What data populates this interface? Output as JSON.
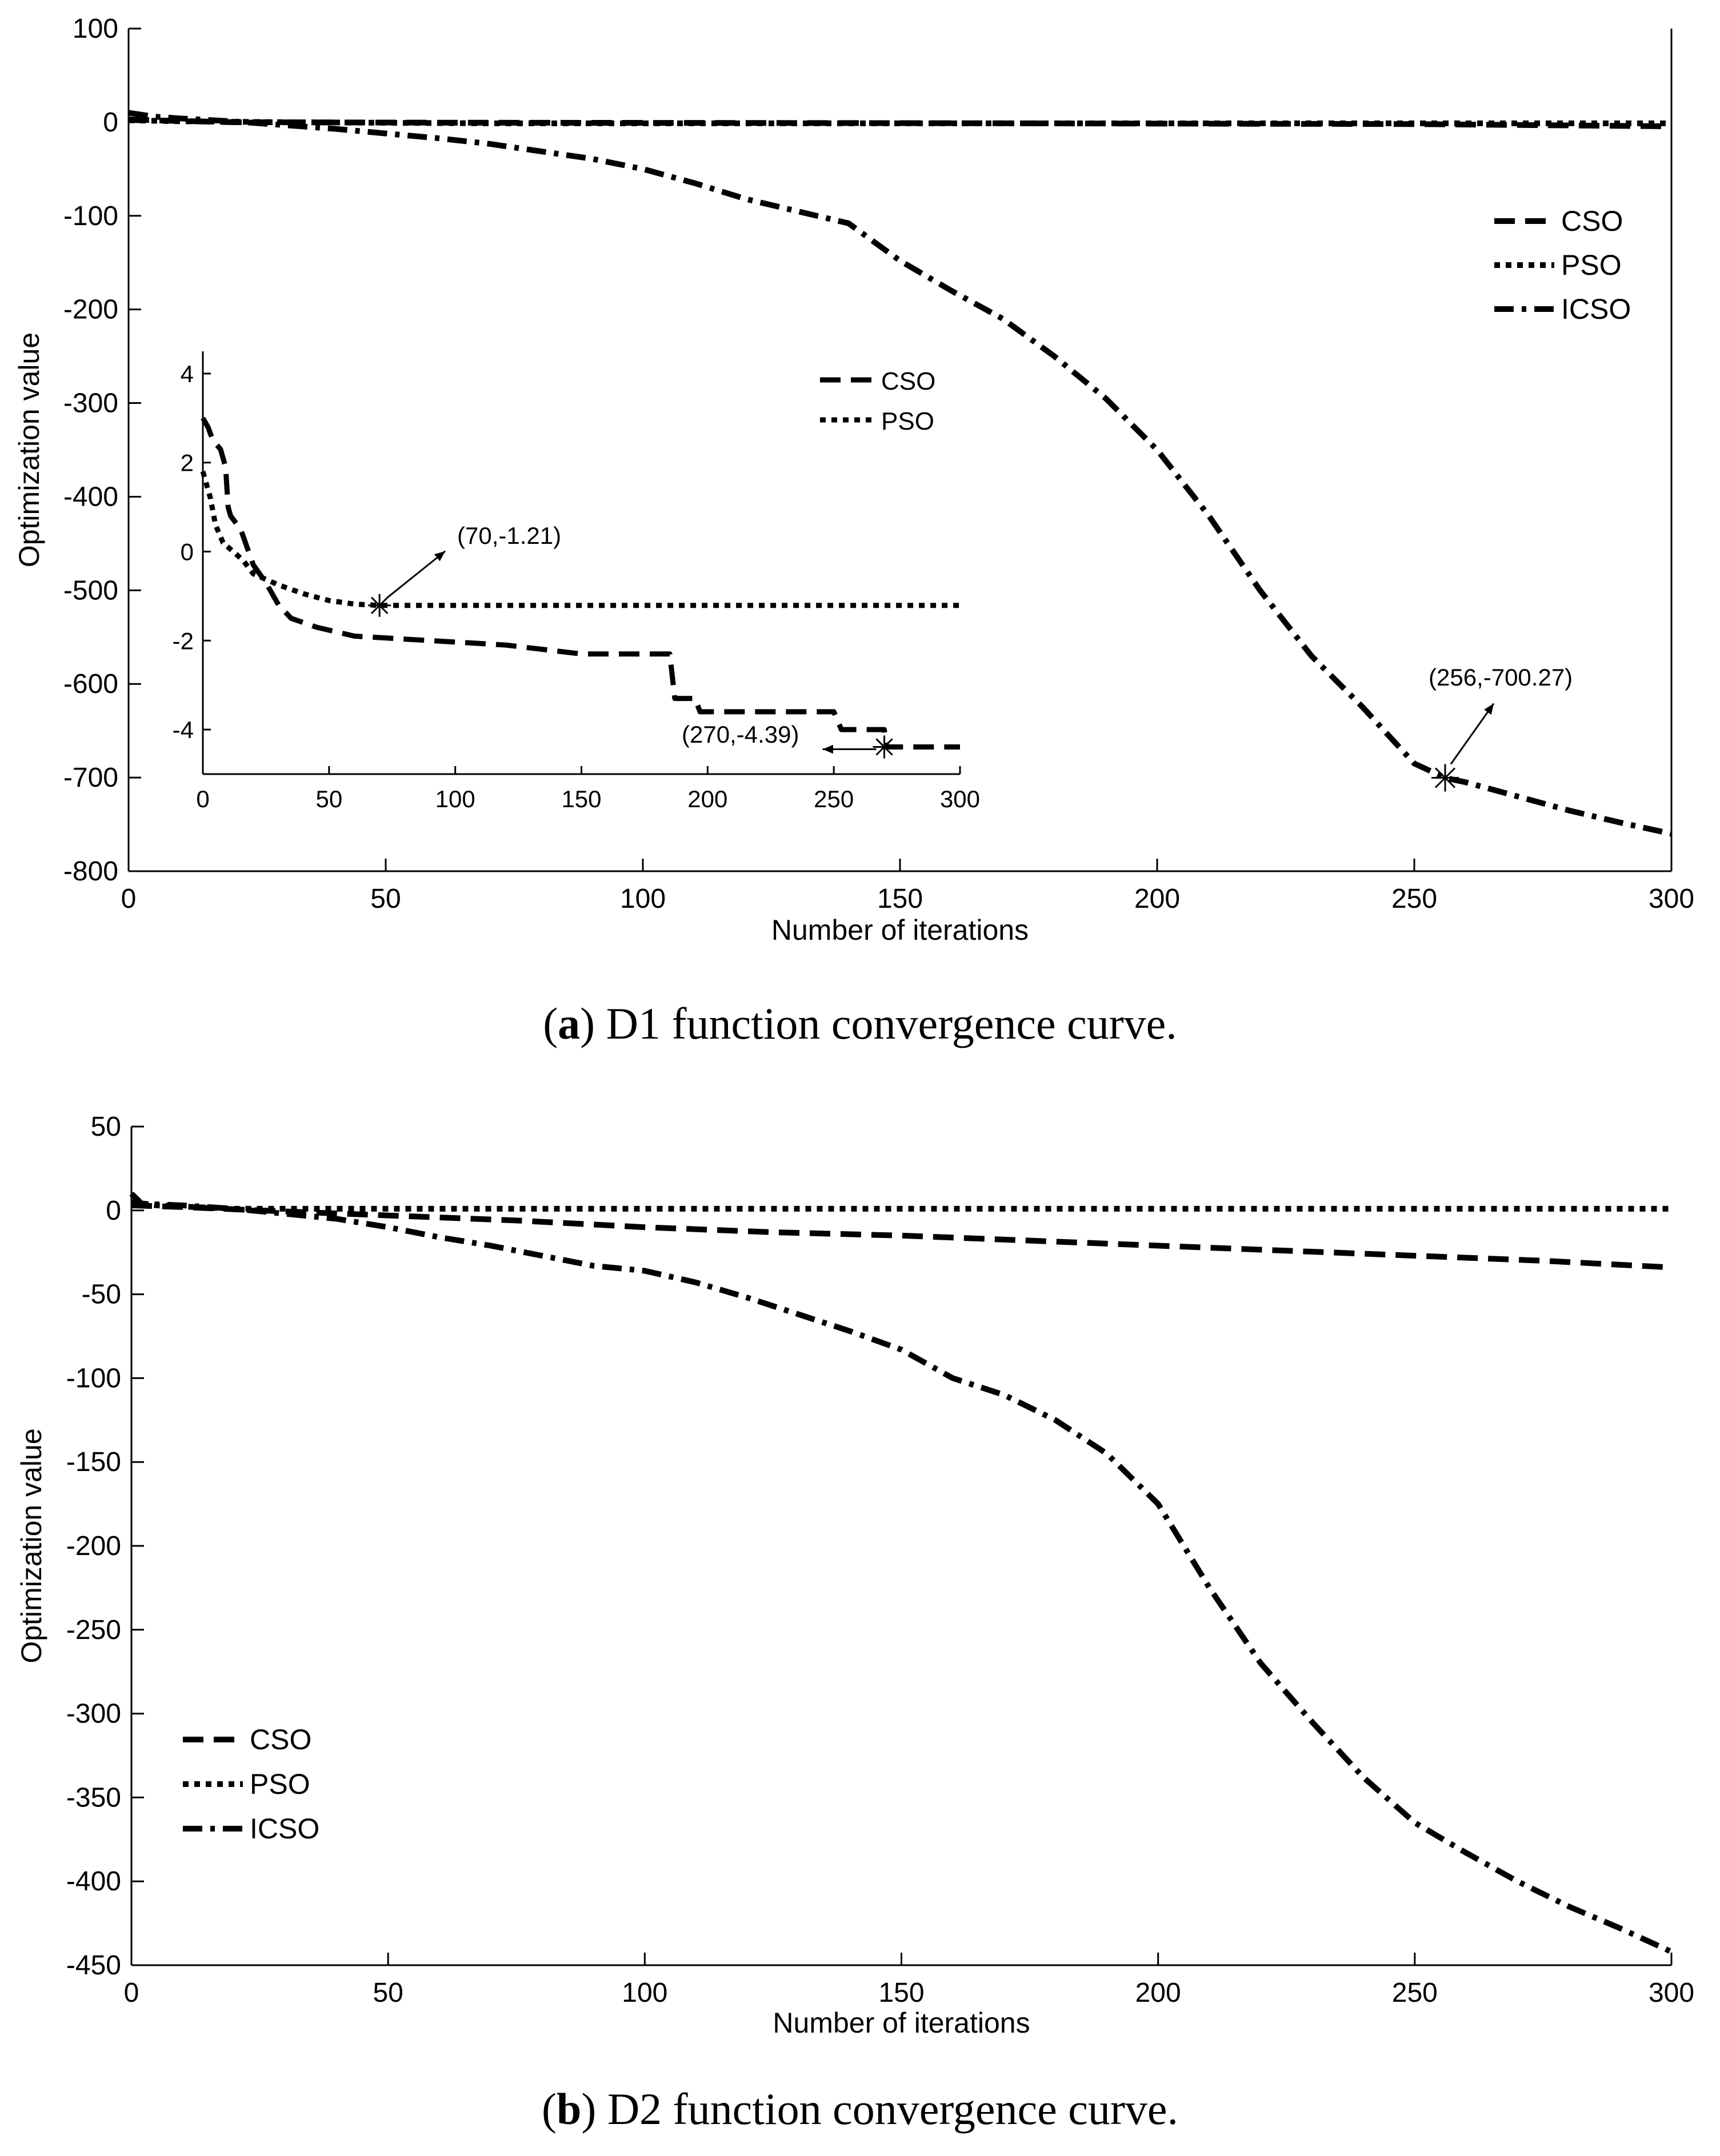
{
  "figure": {
    "caption_a": {
      "prefix": "(",
      "letter": "a",
      "text": ") D1 function convergence curve."
    },
    "caption_b": {
      "prefix": "(",
      "letter": "b",
      "text": ") D2 function convergence curve."
    }
  },
  "chart_data": [
    {
      "id": "D1",
      "type": "line",
      "title": "",
      "xlabel": "Number of iterations",
      "ylabel": "Optimization value",
      "xlim": [
        0,
        300
      ],
      "ylim": [
        -800,
        100
      ],
      "xticks": [
        0,
        50,
        100,
        150,
        200,
        250,
        300
      ],
      "yticks": [
        100,
        0,
        -100,
        -200,
        -300,
        -400,
        -500,
        -600,
        -700,
        -800
      ],
      "grid": false,
      "legend_position": "upper-right",
      "series": [
        {
          "name": "CSO",
          "style": "dashed",
          "x": [
            0,
            5,
            20,
            60,
            150,
            250,
            300
          ],
          "y": [
            3,
            2,
            0,
            -0.5,
            -1,
            -2,
            -4.4
          ]
        },
        {
          "name": "PSO",
          "style": "dotted",
          "x": [
            0,
            10,
            30,
            70,
            300
          ],
          "y": [
            2,
            1,
            0,
            -1.2,
            -1.2
          ]
        },
        {
          "name": "ICSO",
          "style": "dashdot",
          "x": [
            0,
            5,
            10,
            20,
            30,
            40,
            50,
            60,
            70,
            80,
            90,
            100,
            110,
            120,
            130,
            140,
            150,
            160,
            170,
            180,
            190,
            200,
            210,
            220,
            230,
            240,
            250,
            256,
            260,
            270,
            280,
            290,
            300
          ],
          "y": [
            10,
            6,
            4,
            1,
            -3,
            -7,
            -12,
            -17,
            -23,
            -31,
            -39,
            -50,
            -65,
            -82,
            -95,
            -108,
            -148,
            -180,
            -210,
            -250,
            -295,
            -350,
            -420,
            -500,
            -570,
            -625,
            -685,
            -700.27,
            -705,
            -720,
            -735,
            -748,
            -760
          ]
        }
      ],
      "annotations": [
        {
          "text": "(256,-700.27)",
          "x": 256,
          "y": -700.27
        }
      ],
      "inset": {
        "xlim": [
          0,
          300
        ],
        "ylim": [
          -5,
          4.5
        ],
        "xticks": [
          0,
          50,
          100,
          150,
          200,
          250,
          300
        ],
        "yticks": [
          4,
          2,
          0,
          -2,
          -4
        ],
        "legend_position": "upper-right",
        "series": [
          {
            "name": "CSO",
            "style": "dashed",
            "x": [
              0,
              2,
              4,
              7,
              9,
              10,
              11,
              15,
              20,
              25,
              30,
              35,
              45,
              60,
              120,
              150,
              185,
              187,
              195,
              197,
              200,
              250,
              253,
              270,
              271,
              300
            ],
            "y": [
              3.0,
              2.8,
              2.5,
              2.3,
              1.9,
              1.0,
              0.8,
              0.5,
              -0.3,
              -0.7,
              -1.2,
              -1.5,
              -1.7,
              -1.9,
              -2.1,
              -2.3,
              -2.3,
              -3.3,
              -3.3,
              -3.6,
              -3.6,
              -3.6,
              -4.0,
              -4.0,
              -4.39,
              -4.39
            ]
          },
          {
            "name": "PSO",
            "style": "dotted",
            "x": [
              0,
              3,
              5,
              8,
              12,
              16,
              20,
              30,
              40,
              50,
              60,
              70,
              300
            ],
            "y": [
              1.8,
              1.2,
              0.6,
              0.2,
              0.0,
              -0.2,
              -0.5,
              -0.75,
              -0.95,
              -1.1,
              -1.18,
              -1.21,
              -1.21
            ]
          }
        ],
        "annotations": [
          {
            "text": "(70,-1.21)",
            "x": 70,
            "y": -1.21
          },
          {
            "text": "(270,-4.39)",
            "x": 270,
            "y": -4.39
          }
        ]
      }
    },
    {
      "id": "D2",
      "type": "line",
      "title": "",
      "xlabel": "Number of iterations",
      "ylabel": "Optimization value",
      "xlim": [
        0,
        300
      ],
      "ylim": [
        -450,
        50
      ],
      "xticks": [
        0,
        50,
        100,
        150,
        200,
        250,
        300
      ],
      "yticks": [
        50,
        0,
        -50,
        -100,
        -150,
        -200,
        -250,
        -300,
        -350,
        -400,
        -450
      ],
      "grid": false,
      "legend_position": "lower-left",
      "series": [
        {
          "name": "CSO",
          "style": "dashed",
          "x": [
            0,
            10,
            25,
            50,
            75,
            100,
            125,
            150,
            175,
            200,
            225,
            250,
            275,
            300
          ],
          "y": [
            3,
            2,
            0,
            -3,
            -6,
            -10,
            -13,
            -15,
            -18,
            -21,
            -24,
            -27,
            -30,
            -34
          ]
        },
        {
          "name": "PSO",
          "style": "dotted",
          "x": [
            0,
            5,
            20,
            300
          ],
          "y": [
            5,
            3,
            1,
            1
          ]
        },
        {
          "name": "ICSO",
          "style": "dashdot",
          "x": [
            0,
            2,
            10,
            20,
            30,
            40,
            50,
            60,
            70,
            80,
            90,
            100,
            110,
            120,
            130,
            140,
            150,
            160,
            170,
            180,
            190,
            200,
            210,
            220,
            230,
            240,
            250,
            260,
            270,
            280,
            290,
            300
          ],
          "y": [
            10,
            4,
            3,
            1,
            -2,
            -5,
            -10,
            -16,
            -21,
            -27,
            -33,
            -36,
            -43,
            -52,
            -62,
            -72,
            -83,
            -100,
            -110,
            -125,
            -145,
            -175,
            -225,
            -270,
            -305,
            -338,
            -365,
            -383,
            -400,
            -415,
            -428,
            -442
          ]
        }
      ]
    }
  ]
}
